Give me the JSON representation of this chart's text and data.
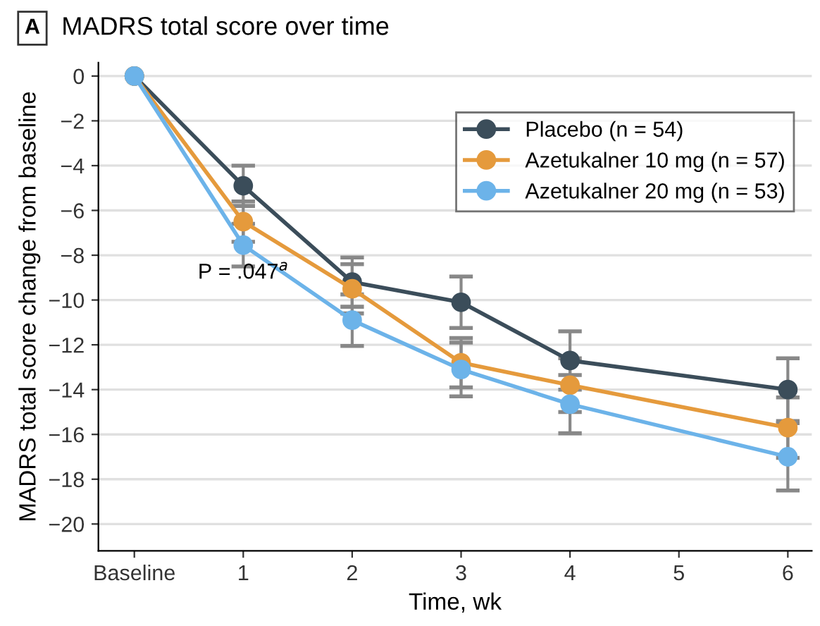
{
  "chart_data": {
    "type": "line",
    "title": "MADRS total score over time",
    "xlabel": "Time, wk",
    "ylabel": "MADRS total score change from baseline",
    "x": [
      0,
      1,
      2,
      3,
      4,
      6
    ],
    "series": [
      {
        "name": "Placebo (n = 54)",
        "color": "#3b4d5a",
        "values": [
          0,
          -4.9,
          -9.2,
          -10.1,
          -12.7,
          -14.0
        ],
        "errors": [
          null,
          0.9,
          1.1,
          1.15,
          1.3,
          1.4
        ]
      },
      {
        "name": "Azetukalner 10 mg (n = 57)",
        "color": "#e59a3c",
        "values": [
          0,
          -6.5,
          -9.5,
          -12.8,
          -13.8,
          -15.7
        ],
        "errors": [
          null,
          0.9,
          1.1,
          1.1,
          1.2,
          1.35
        ]
      },
      {
        "name": "Azetukalner 20 mg (n = 53)",
        "color": "#6cb3e9",
        "values": [
          0,
          -7.55,
          -10.9,
          -13.1,
          -14.65,
          -17.0
        ],
        "errors": [
          null,
          0.95,
          1.15,
          1.2,
          1.3,
          1.5
        ]
      }
    ],
    "annotations": [
      "A",
      {
        "text": "P = .047$^{a}$",
        "x": 1,
        "y": -8.8
      }
    ],
    "xlim": [
      -0.33,
      6.22
    ],
    "xticks": [
      {
        "value": 0,
        "label": "Baseline"
      },
      1,
      2,
      3,
      4,
      5,
      6
    ],
    "ylim": [
      -21.2,
      0.6
    ],
    "yticks": [
      0,
      -2,
      -4,
      -6,
      -8,
      -10,
      -12,
      -14,
      -16,
      -18,
      -20
    ],
    "grid": "y",
    "legend": "top right",
    "marker": "circle",
    "line_style": "solid"
  }
}
